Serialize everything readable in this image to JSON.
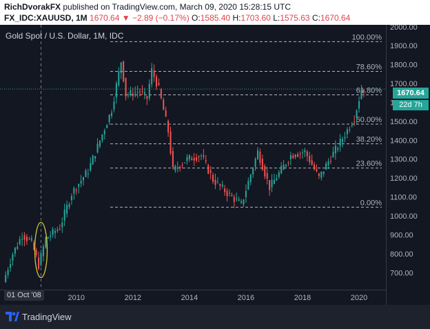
{
  "header": {
    "author": "RichDvorakFX",
    "published_text": "published on TradingView.com, March 09, 2020 15:28:15 UTC",
    "symbol": "FX_IDC:XAUUSD, 1M",
    "last": "1670.64",
    "change": "▼ −2.89 (−0.17%)",
    "ohlc": [
      {
        "label": "O:",
        "value": "1585.40"
      },
      {
        "label": "H:",
        "value": "1703.60"
      },
      {
        "label": "L:",
        "value": "1575.63"
      },
      {
        "label": "C:",
        "value": "1670.64"
      }
    ]
  },
  "chart_data": {
    "type": "candlestick",
    "title": "Gold Spot / U.S. Dollar, 1M, IDC",
    "price_axis": {
      "ylim": [
        610,
        2010
      ],
      "ticks": [
        "700.00",
        "800.00",
        "900.00",
        "1000.00",
        "1100.00",
        "1200.00",
        "1300.00",
        "1400.00",
        "1500.00",
        "1600.00",
        "1700.00",
        "1800.00",
        "1900.00",
        "2000.00"
      ]
    },
    "time_axis": {
      "xlim": [
        2007.3,
        2020.95
      ],
      "ticks": [
        "2010",
        "2012",
        "2014",
        "2016",
        "2018",
        "2020"
      ]
    },
    "fibonacci_levels": [
      {
        "label": "100.00%",
        "price": 1921
      },
      {
        "label": "78.60%",
        "price": 1764
      },
      {
        "label": "61.80%",
        "price": 1640
      },
      {
        "label": "50.00%",
        "price": 1485
      },
      {
        "label": "38.20%",
        "price": 1381
      },
      {
        "label": "23.60%",
        "price": 1253
      },
      {
        "label": "0.00%",
        "price": 1046
      }
    ],
    "annotations": {
      "date_marker": "01 Oct '08",
      "last_price": "1670.64",
      "countdown": "22d 7h"
    },
    "colors": {
      "up": "#26a69a",
      "down": "#ef5350",
      "fib": "#b2b5be",
      "circle": "#d4c83a",
      "background": "#131722"
    },
    "anchors": [
      [
        2007.5,
        650
      ],
      [
        2007.83,
        800
      ],
      [
        2008.17,
        900
      ],
      [
        2008.5,
        860
      ],
      [
        2008.75,
        740
      ],
      [
        2009.0,
        880
      ],
      [
        2009.5,
        940
      ],
      [
        2009.92,
        1120
      ],
      [
        2010.5,
        1240
      ],
      [
        2010.92,
        1400
      ],
      [
        2011.33,
        1560
      ],
      [
        2011.67,
        1820
      ],
      [
        2011.83,
        1640
      ],
      [
        2012.33,
        1660
      ],
      [
        2012.58,
        1620
      ],
      [
        2012.75,
        1770
      ],
      [
        2013.0,
        1670
      ],
      [
        2013.33,
        1450
      ],
      [
        2013.5,
        1240
      ],
      [
        2014.0,
        1300
      ],
      [
        2014.5,
        1320
      ],
      [
        2014.92,
        1190
      ],
      [
        2015.5,
        1110
      ],
      [
        2015.92,
        1060
      ],
      [
        2016.5,
        1340
      ],
      [
        2016.92,
        1150
      ],
      [
        2017.67,
        1320
      ],
      [
        2018.17,
        1340
      ],
      [
        2018.67,
        1200
      ],
      [
        2019.0,
        1290
      ],
      [
        2019.5,
        1410
      ],
      [
        2019.92,
        1520
      ],
      [
        2020.17,
        1670
      ]
    ]
  },
  "footer": {
    "logo_text": "TradingView"
  }
}
